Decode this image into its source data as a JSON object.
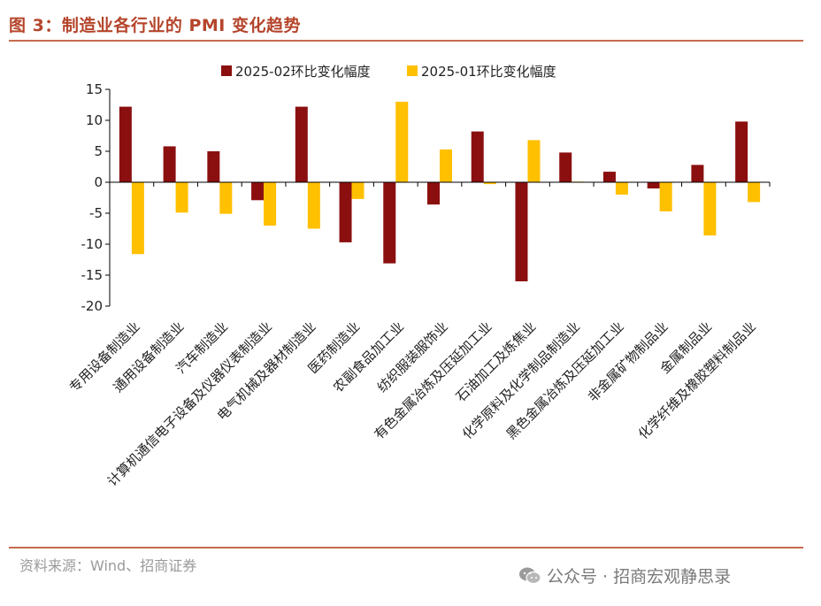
{
  "figure": {
    "title": "图 3：制造业各行业的 PMI 变化趋势",
    "source": "资料来源：Wind、招商证券",
    "watermark": "公众号 · 招商宏观静思录"
  },
  "chart_data": {
    "type": "bar",
    "title": "制造业各行业的 PMI 变化趋势",
    "xlabel": "",
    "ylabel": "",
    "ylim": [
      -20,
      15
    ],
    "yticks": [
      15,
      10,
      5,
      0,
      -5,
      -10,
      -15,
      -20
    ],
    "legend_position": "top",
    "categories": [
      "专用设备制造业",
      "通用设备制造业",
      "汽车制造业",
      "计算机通信电子设备及仪器仪表制造业",
      "电气机械及器材制造业",
      "医药制造业",
      "农副食品加工业",
      "纺织服装服饰业",
      "有色金属冶炼及压延加工业",
      "石油加工及炼焦业",
      "化学原料及化学制品制造业",
      "黑色金属冶炼及压延加工业",
      "非金属矿物制品业",
      "金属制品业",
      "化学纤维及橡胶塑料制品业"
    ],
    "series": [
      {
        "name": "2025-02环比变化幅度",
        "color": "#8b0f0f",
        "values": [
          12.2,
          5.8,
          5.0,
          -2.9,
          12.2,
          -9.7,
          -13.1,
          -3.6,
          8.2,
          -16.0,
          4.8,
          1.7,
          -1.0,
          2.8,
          9.8
        ]
      },
      {
        "name": "2025-01环比变化幅度",
        "color": "#ffc000",
        "values": [
          -11.6,
          -4.9,
          -5.1,
          -7.0,
          -7.5,
          -2.7,
          13.0,
          5.3,
          -0.3,
          6.8,
          0.1,
          -2.0,
          -4.7,
          -8.6,
          -3.2
        ]
      }
    ]
  }
}
